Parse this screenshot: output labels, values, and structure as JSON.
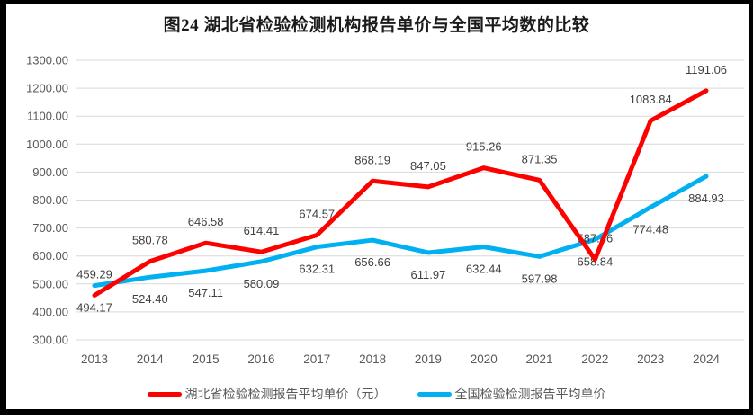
{
  "title": "图24 湖北省检验检测机构报告单价与全国平均数的比较",
  "colors": {
    "hubei_line": "#fe0000",
    "national_line": "#00b0f0",
    "gridline": "#d9d9d9",
    "tick_label": "#595959",
    "data_label": "#404040",
    "frame": "#000000"
  },
  "chart_data": {
    "type": "line",
    "title": "图24 湖北省检验检测机构报告单价与全国平均数的比较",
    "x": [
      "2013",
      "2014",
      "2015",
      "2016",
      "2017",
      "2018",
      "2019",
      "2020",
      "2021",
      "2022",
      "2023",
      "2024"
    ],
    "series": [
      {
        "name": "湖北省检验检测报告平均单价（元）",
        "color": "#fe0000",
        "label_position": "above",
        "values": [
          459.29,
          580.78,
          646.58,
          614.41,
          674.57,
          868.19,
          847.05,
          915.26,
          871.35,
          587.46,
          1083.84,
          1191.06
        ]
      },
      {
        "name": "全国检验检测报告平均单价",
        "color": "#00b0f0",
        "label_position": "below",
        "values": [
          494.17,
          524.4,
          547.11,
          580.09,
          632.31,
          656.66,
          611.97,
          632.44,
          597.98,
          658.84,
          774.48,
          884.93
        ]
      }
    ],
    "xlabel": "",
    "ylabel": "",
    "ylim": [
      300,
      1300
    ],
    "ytick_step": 100,
    "ytick_labels": [
      "300.00",
      "400.00",
      "500.00",
      "600.00",
      "700.00",
      "800.00",
      "900.00",
      "1000.00",
      "1100.00",
      "1200.00",
      "1300.00"
    ],
    "value_label_decimals": 2,
    "grid": true,
    "legend_position": "bottom"
  }
}
